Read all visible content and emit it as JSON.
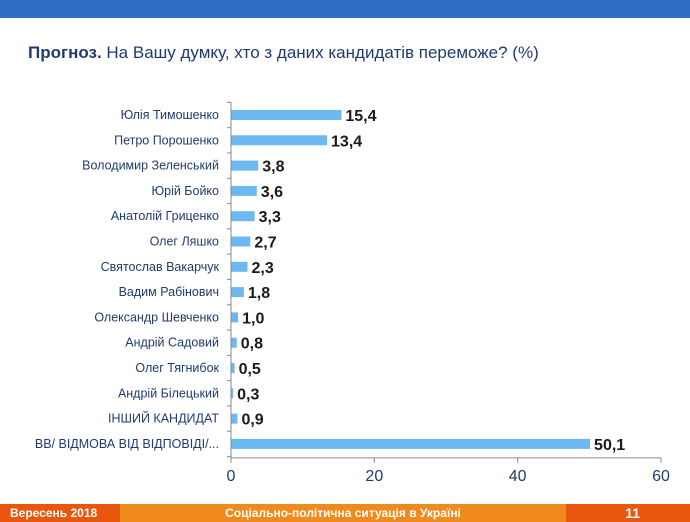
{
  "title": {
    "bold": "Прогноз.",
    "text": " На Вашу думку, хто з даних кандидатів переможе? (%)"
  },
  "footer": {
    "date": "Вересень 2018",
    "title": "Соціально-політична ситуація в Україні",
    "page": "11"
  },
  "colors": {
    "bar": "#6cb8f0",
    "top_bar": "#2e6fc4",
    "footer": "#e8570d",
    "footer_mid": "#f08a1c"
  },
  "chart_data": {
    "type": "bar",
    "orientation": "horizontal",
    "categories": [
      "Юлія Тимошенко",
      "Петро Порошенко",
      "Володимир Зеленський",
      "Юрій Бойко",
      "Анатолій Гриценко",
      "Олег Ляшко",
      "Святослав Вакарчук",
      "Вадим Рабінович",
      "Олександр Шевченко",
      "Андрій Садовий",
      "Олег Тягнибок",
      "Андрій Білецький",
      "ІНШИЙ КАНДИДАТ",
      "ВВ/ ВІДМОВА ВІД ВІДПОВІДІ/..."
    ],
    "values": [
      15.4,
      13.4,
      3.8,
      3.6,
      3.3,
      2.7,
      2.3,
      1.8,
      1.0,
      0.8,
      0.5,
      0.3,
      0.9,
      50.1
    ],
    "value_labels": [
      "15,4",
      "13,4",
      "3,8",
      "3,6",
      "3,3",
      "2,7",
      "2,3",
      "1,8",
      "1,0",
      "0,8",
      "0,5",
      "0,3",
      "0,9",
      "50,1"
    ],
    "xlim": [
      0,
      60
    ],
    "xticks": [
      0,
      20,
      40,
      60
    ],
    "xtick_labels": [
      "0",
      "20",
      "40",
      "60"
    ],
    "grid": false,
    "legend": "none"
  }
}
